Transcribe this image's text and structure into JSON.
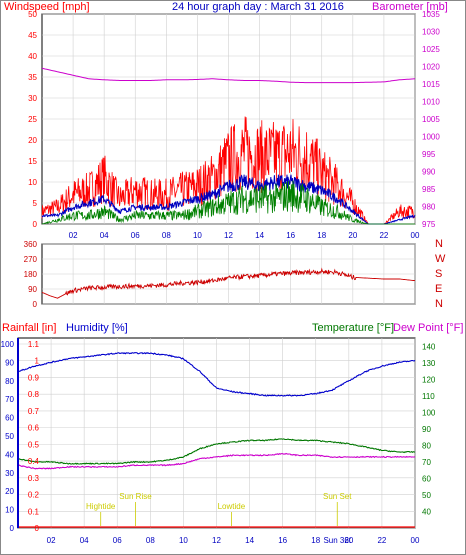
{
  "header": {
    "left_title": "Windspeed [mph]",
    "center_title": "24 hour graph day : March 31 2016",
    "right_title": "Barometer [mb]"
  },
  "colors": {
    "windspeed": "#ff0000",
    "gust": "#ff0000",
    "average": "#0000c0",
    "lull": "#008000",
    "barometer": "#cc00cc",
    "direction": "#cc0000",
    "humidity": "#0000cc",
    "temperature": "#007700",
    "dewpoint": "#cc00cc",
    "rainfall": "#ff0000",
    "tide": "#cccc00",
    "grid": "#d0d0d0"
  },
  "chart_data": [
    {
      "type": "area",
      "panel": "wind",
      "title": "Windspeed [mph]",
      "y_range": [
        0,
        50
      ],
      "y_ticks": [
        "0",
        "5",
        "10",
        "15",
        "20",
        "25",
        "30",
        "35",
        "40",
        "45",
        "50"
      ],
      "right_axis_title": "Barometer [mb]",
      "right_range": [
        975,
        1035
      ],
      "right_ticks": [
        "975",
        "980",
        "985",
        "990",
        "995",
        "1000",
        "1005",
        "1010",
        "1015",
        "1020",
        "1025",
        "1030",
        "1035"
      ],
      "x_range": [
        0,
        24
      ],
      "x_ticks": [
        "02",
        "04",
        "06",
        "08",
        "10",
        "12",
        "14",
        "16",
        "18",
        "20",
        "22",
        "00"
      ],
      "x": [
        0,
        1,
        2,
        3,
        4,
        5,
        6,
        7,
        8,
        9,
        10,
        11,
        12,
        13,
        14,
        15,
        16,
        17,
        18,
        19,
        20,
        21,
        22,
        23,
        24
      ],
      "series": [
        {
          "values": [
            3,
            4,
            7,
            8,
            11,
            6,
            8,
            7,
            7,
            8,
            9,
            11,
            15,
            17,
            16,
            16,
            17,
            16,
            12,
            9,
            5,
            0,
            0,
            3,
            3
          ]
        },
        {
          "values": [
            2,
            2,
            4,
            5,
            6,
            3,
            4,
            4,
            4,
            5,
            6,
            7,
            9,
            10,
            9,
            10,
            10,
            9,
            8,
            6,
            3,
            0,
            0,
            1,
            2
          ]
        },
        {
          "values": [
            0,
            1,
            2,
            2,
            3,
            1,
            2,
            2,
            2,
            2,
            3,
            4,
            5,
            6,
            6,
            6,
            7,
            6,
            4,
            3,
            1,
            0,
            0,
            0,
            0
          ]
        }
      ],
      "barometer": [
        1019.5,
        1018.5,
        1017.5,
        1016.5,
        1016.2,
        1016,
        1016,
        1016,
        1016.2,
        1016.2,
        1016.3,
        1016.5,
        1016.2,
        1016,
        1016,
        1015.8,
        1015.5,
        1015.4,
        1015.4,
        1015.4,
        1015.4,
        1015.5,
        1015.6,
        1016.2,
        1016.5
      ]
    },
    {
      "type": "line",
      "panel": "direction",
      "y_range": [
        0,
        360
      ],
      "y_ticks": [
        "0",
        "90",
        "180",
        "270",
        "360"
      ],
      "right_labels": [
        "N",
        "W",
        "S",
        "E",
        "N"
      ],
      "x_range": [
        0,
        24
      ],
      "x": [
        0,
        0.5,
        1,
        1.5,
        2,
        3,
        4,
        5,
        6,
        7,
        8,
        9,
        10,
        11,
        12,
        13,
        14,
        15,
        16,
        17,
        18,
        19,
        20,
        21,
        22,
        23,
        24
      ],
      "values": [
        70,
        50,
        35,
        60,
        80,
        95,
        100,
        105,
        108,
        110,
        115,
        125,
        130,
        140,
        155,
        165,
        170,
        180,
        185,
        190,
        195,
        190,
        160,
        155,
        150,
        150,
        140
      ]
    },
    {
      "type": "line",
      "panel": "climate",
      "left_axis_title": "Rainfall [in]",
      "left2_axis_title": "Humidity [%]",
      "right_axis_title": "Temperature [°F]",
      "right2_axis_title": "Dew Point [°F]",
      "rain_range": [
        0,
        1.1
      ],
      "rain_ticks": [
        "0",
        "0.1",
        "0.2",
        "0.3",
        "0.4",
        "0.5",
        "0.6",
        "0.7",
        "0.8",
        "0.9",
        "1",
        "1.1"
      ],
      "humidity_range": [
        0,
        100
      ],
      "humidity_ticks": [
        "0",
        "10",
        "20",
        "30",
        "40",
        "50",
        "60",
        "70",
        "80",
        "90",
        "100"
      ],
      "temp_range": [
        30,
        145
      ],
      "temp_ticks": [
        "40",
        "50",
        "60",
        "70",
        "80",
        "90",
        "100",
        "110",
        "120",
        "130",
        "140"
      ],
      "x_range": [
        0,
        24
      ],
      "x_ticks": [
        "02",
        "04",
        "06",
        "08",
        "10",
        "12",
        "14",
        "16",
        "18",
        "20",
        "22",
        "00"
      ],
      "x": [
        0,
        1,
        2,
        3,
        4,
        5,
        6,
        7,
        8,
        9,
        10,
        11,
        12,
        13,
        14,
        15,
        16,
        17,
        18,
        19,
        20,
        21,
        22,
        23,
        24
      ],
      "humidity": [
        85,
        88,
        90,
        92,
        93,
        94,
        95,
        95,
        95,
        94,
        92,
        85,
        76,
        74,
        73,
        72,
        72,
        72,
        73,
        75,
        80,
        85,
        88,
        90,
        91
      ],
      "temperature": [
        72,
        70,
        70,
        69,
        69,
        69,
        69,
        70,
        70,
        71,
        73,
        78,
        81,
        82,
        83,
        83,
        84,
        83,
        83,
        82,
        81,
        79,
        77,
        76,
        76
      ],
      "dewpoint": [
        68,
        66,
        66,
        67,
        67,
        67,
        67,
        68,
        68,
        68,
        69,
        72,
        73,
        74,
        74,
        74,
        75,
        74,
        74,
        73,
        73,
        73,
        73,
        73,
        73
      ],
      "rainfall": [
        0,
        0,
        0,
        0,
        0,
        0,
        0,
        0,
        0,
        0,
        0,
        0,
        0,
        0,
        0,
        0,
        0,
        0,
        0,
        0,
        0,
        0,
        0,
        0,
        0
      ],
      "annotations": [
        {
          "label": "Hightide",
          "x": 5.0
        },
        {
          "label": "Sun Rise",
          "x": 7.1
        },
        {
          "label": "Lowtide",
          "x": 12.9
        },
        {
          "label": "Sun Set",
          "x": 19.3
        }
      ],
      "x_marker": "Sun 36t"
    }
  ]
}
